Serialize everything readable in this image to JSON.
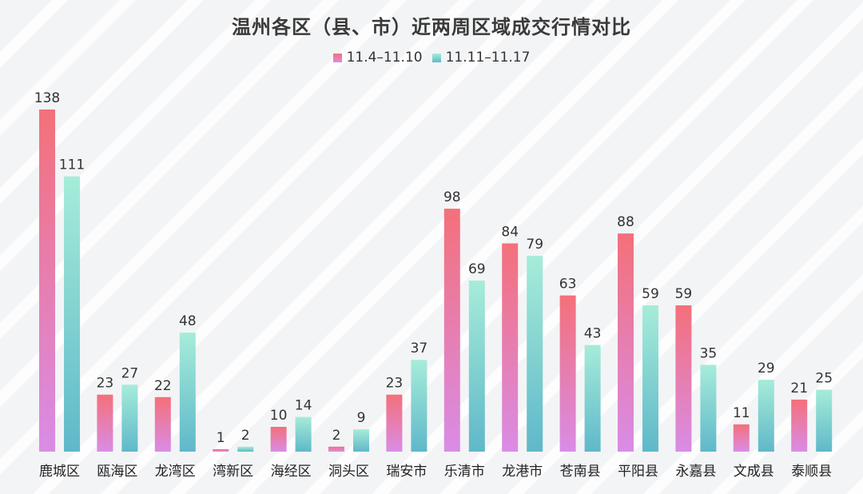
{
  "chart_data": {
    "type": "bar",
    "title": "温州各区（县、市）近两周区域成交行情对比",
    "xlabel": "",
    "ylabel": "",
    "ylim": [
      0,
      138
    ],
    "grid": false,
    "legend_position": "top-center",
    "categories": [
      "鹿城区",
      "瓯海区",
      "龙湾区",
      "湾新区",
      "海经区",
      "洞头区",
      "瑞安市",
      "乐清市",
      "龙港市",
      "苍南县",
      "平阳县",
      "永嘉县",
      "文成县",
      "泰顺县"
    ],
    "series": [
      {
        "name": "11.4–11.10",
        "values": [
          138,
          23,
          22,
          1,
          10,
          2,
          23,
          98,
          84,
          63,
          88,
          59,
          11,
          21
        ],
        "color_top": "#f4707a",
        "color_bottom": "#d98ce6"
      },
      {
        "name": "11.11–11.17",
        "values": [
          111,
          27,
          48,
          2,
          14,
          9,
          37,
          69,
          79,
          43,
          59,
          35,
          29,
          25
        ],
        "color_top": "#a6ecd9",
        "color_bottom": "#5fb8c9"
      }
    ]
  }
}
